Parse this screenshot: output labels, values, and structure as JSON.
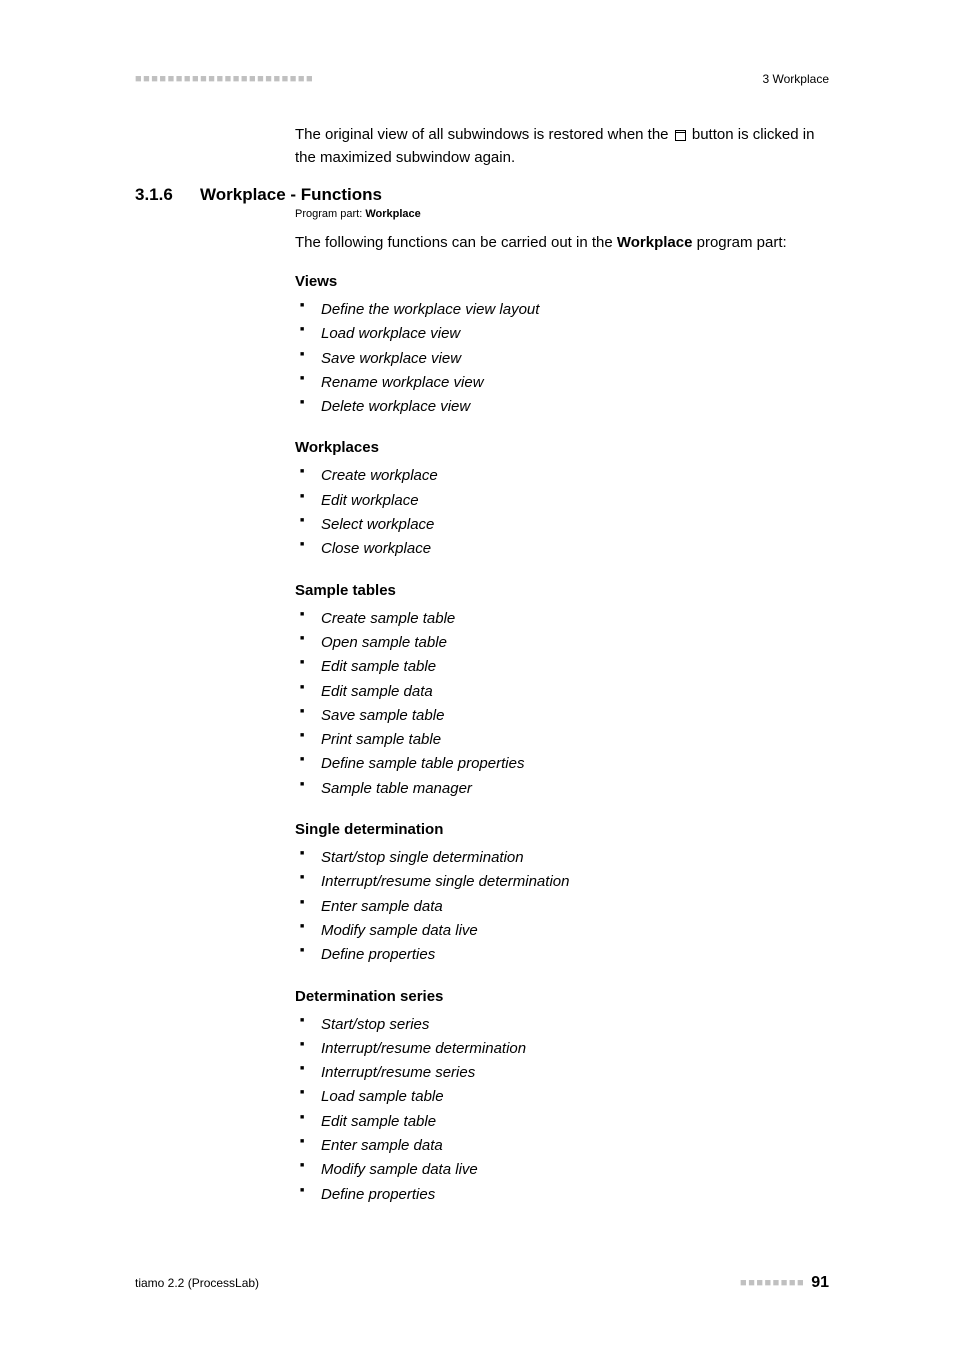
{
  "header": {
    "dashes_left": "■■■■■■■■■■■■■■■■■■■■■■",
    "section_label": "3 Workplace"
  },
  "intro": {
    "text_before_icon": "The original view of all subwindows is restored when the ",
    "text_after_icon": " button is clicked in the maximized subwindow again."
  },
  "section": {
    "number": "3.1.6",
    "title": "Workplace - Functions",
    "program_part_label": "Program part: ",
    "program_part_value": "Workplace",
    "following_text_prefix": "The following functions can be carried out in the ",
    "following_text_bold": "Workplace",
    "following_text_suffix": " program part:"
  },
  "groups": [
    {
      "heading": "Views",
      "items": [
        "Define the workplace view layout",
        "Load workplace view",
        "Save workplace view",
        "Rename workplace view",
        "Delete workplace view"
      ]
    },
    {
      "heading": "Workplaces",
      "items": [
        "Create workplace",
        "Edit workplace",
        "Select workplace",
        "Close workplace"
      ]
    },
    {
      "heading": "Sample tables",
      "items": [
        "Create sample table",
        "Open sample table",
        "Edit sample table",
        "Edit sample data",
        "Save sample table",
        "Print sample table",
        "Define sample table properties",
        "Sample table manager"
      ]
    },
    {
      "heading": "Single determination",
      "items": [
        "Start/stop single determination",
        "Interrupt/resume single determination",
        "Enter sample data",
        "Modify sample data live",
        "Define properties"
      ]
    },
    {
      "heading": "Determination series",
      "items": [
        "Start/stop series",
        "Interrupt/resume determination",
        "Interrupt/resume series",
        "Load sample table",
        "Edit sample table",
        "Enter sample data",
        "Modify sample data live",
        "Define properties"
      ]
    }
  ],
  "footer": {
    "left": "tiamo 2.2 (ProcessLab)",
    "dashes": "■■■■■■■■",
    "page": "91"
  }
}
